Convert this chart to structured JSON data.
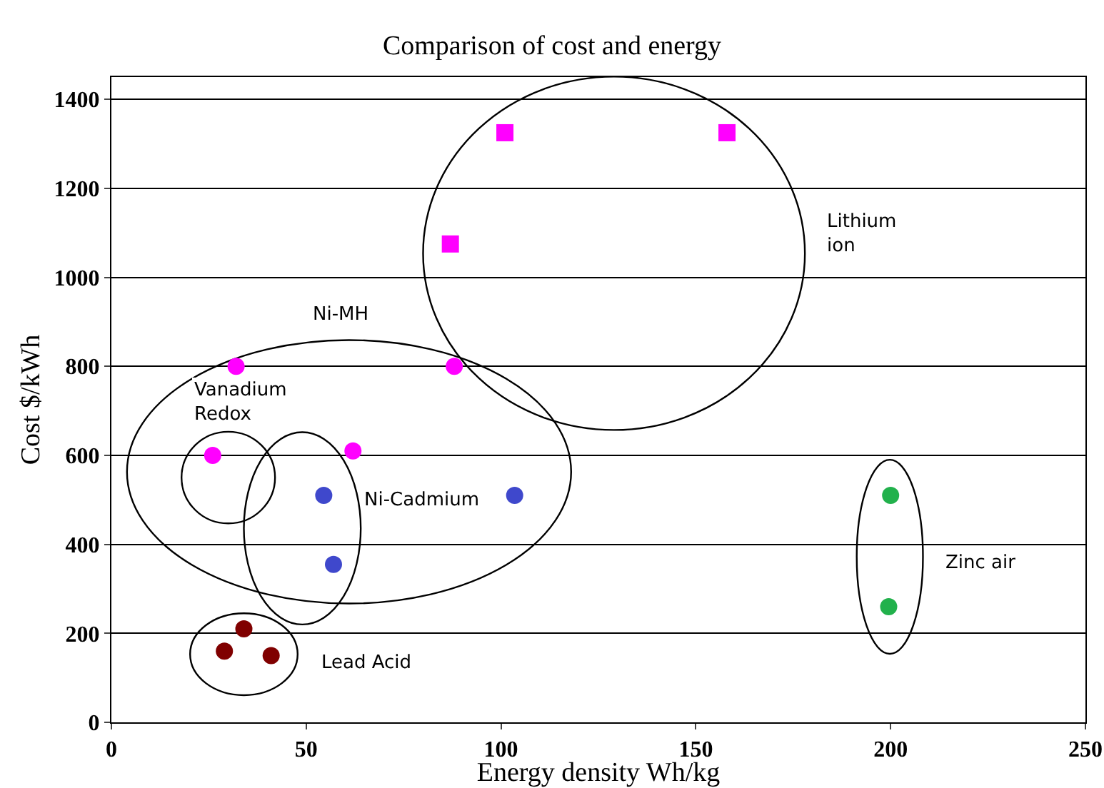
{
  "chart_data": {
    "type": "scatter",
    "title": "Comparison of cost and energy",
    "xlabel": "Energy density Wh/kg",
    "ylabel": "Cost $/kWh",
    "xlim": [
      0,
      250
    ],
    "xticks": [
      0,
      50,
      100,
      150,
      200,
      250
    ],
    "ylim": [
      0,
      1450
    ],
    "yticks": [
      0,
      200,
      400,
      600,
      800,
      1000,
      1200,
      1400
    ],
    "grid": "y",
    "series": [
      {
        "color": "#ff00ff",
        "marker": "square",
        "x": [
          101,
          158,
          87
        ],
        "values": [
          1325,
          1325,
          1075
        ]
      },
      {
        "color": "#ff00ff",
        "marker": "circle",
        "x": [
          32,
          88,
          62
        ],
        "values": [
          800,
          800,
          610
        ]
      },
      {
        "color": "#ff00ff",
        "marker": "circle",
        "x": [
          26
        ],
        "values": [
          600
        ]
      },
      {
        "color": "#3f48cc",
        "marker": "circle",
        "x": [
          54.5,
          103.5,
          57
        ],
        "values": [
          510,
          510,
          355
        ]
      },
      {
        "color": "#800000",
        "marker": "circle",
        "x": [
          34,
          29,
          41
        ],
        "values": [
          210,
          160,
          150
        ]
      },
      {
        "color": "#22b14c",
        "marker": "circle",
        "x": [
          200,
          199.5
        ],
        "values": [
          510,
          260
        ]
      }
    ],
    "annotations": [
      "Lithium\nion",
      "Ni-MH",
      "Vanadium\nRedox",
      "Ni-Cadmium",
      "Lead Acid",
      "Zinc air"
    ]
  }
}
